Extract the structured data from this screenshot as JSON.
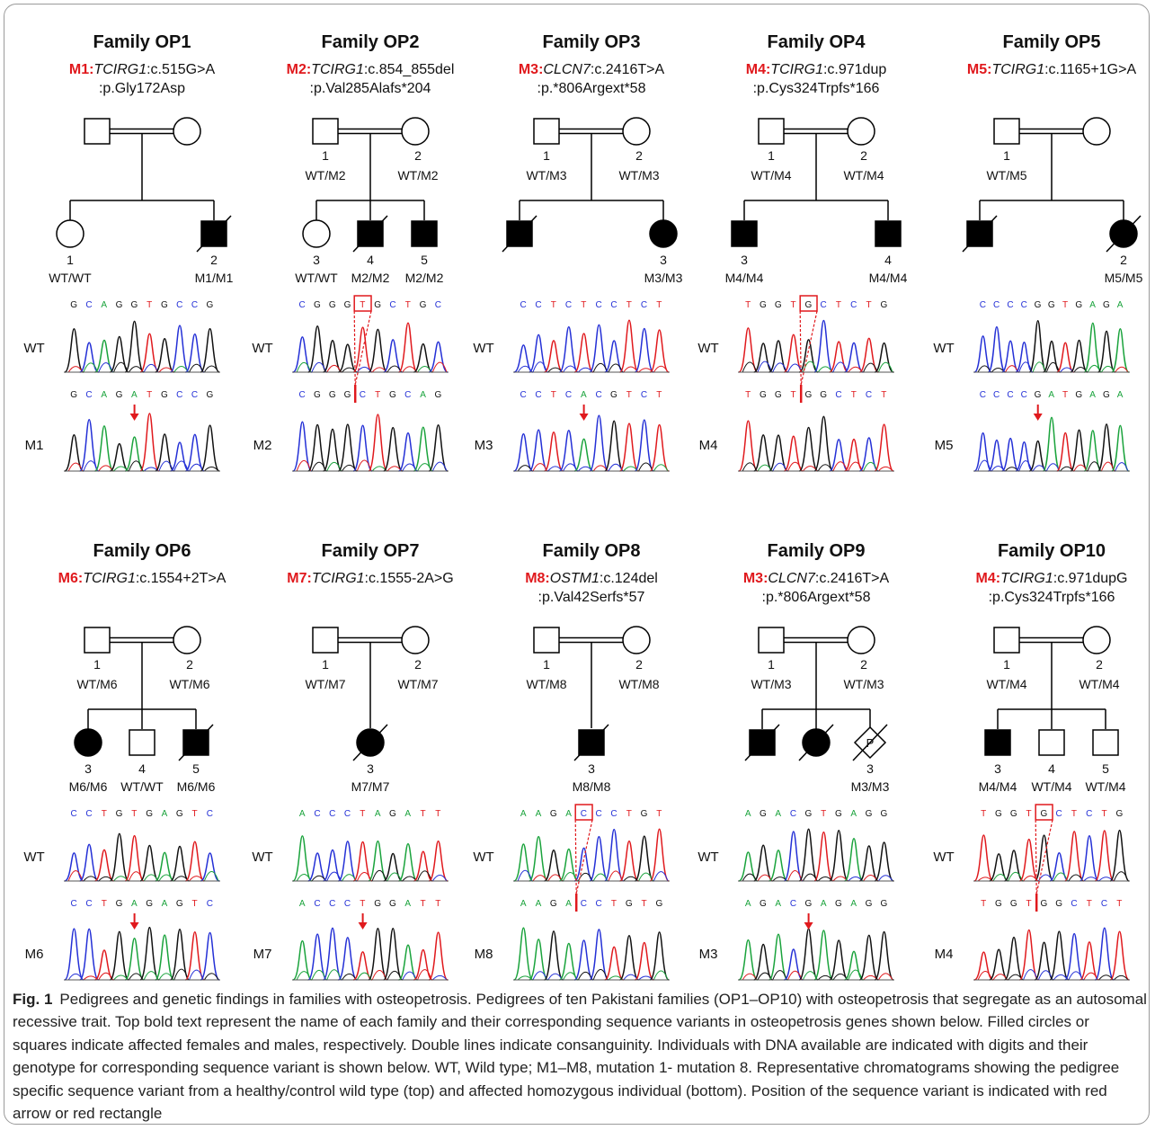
{
  "colors": {
    "mutation": "#e0191d",
    "A": "#1aa33c",
    "C": "#2430d6",
    "G": "#111111",
    "T": "#e0191d"
  },
  "families": [
    {
      "title": "Family OP1",
      "variant_lines": [
        {
          "tag": "M1:",
          "gene": "TCIRG1",
          "rest": ":c.515G>A"
        },
        {
          "tag": "",
          "gene": "",
          "rest": ":p.Gly172Asp"
        }
      ],
      "parent_labels": [
        {
          "num": "",
          "geno": ""
        },
        {
          "num": "",
          "geno": ""
        }
      ],
      "children": [
        {
          "sex": "F",
          "affected": false,
          "deceased": false,
          "num": "1",
          "geno": "WT/WT"
        },
        {
          "sex": "M",
          "affected": true,
          "deceased": true,
          "num": "2",
          "geno": "M1/M1"
        }
      ],
      "wt_seq": "GCAGGTGCCG",
      "mut_seq": "GCAGATGCCG",
      "wt_label": "WT",
      "mut_label": "M1",
      "marker": "arrow"
    },
    {
      "title": "Family OP2",
      "variant_lines": [
        {
          "tag": "M2:",
          "gene": "TCIRG1",
          "rest": ":c.854_855del"
        },
        {
          "tag": "",
          "gene": "",
          "rest": ":p.Val285Alafs*204"
        }
      ],
      "parent_labels": [
        {
          "num": "1",
          "geno": "WT/M2"
        },
        {
          "num": "2",
          "geno": "WT/M2"
        }
      ],
      "children": [
        {
          "sex": "F",
          "affected": false,
          "deceased": false,
          "num": "3",
          "geno": "WT/WT"
        },
        {
          "sex": "M",
          "affected": true,
          "deceased": true,
          "num": "4",
          "geno": "M2/M2"
        },
        {
          "sex": "M",
          "affected": true,
          "deceased": false,
          "num": "5",
          "geno": "M2/M2"
        }
      ],
      "wt_seq": "CGGGTGCTGC",
      "mut_seq": "CGGGCTGCAG",
      "wt_label": "WT",
      "mut_label": "M2",
      "marker": "box"
    },
    {
      "title": "Family OP3",
      "variant_lines": [
        {
          "tag": "M3:",
          "gene": "CLCN7",
          "rest": ":c.2416T>A"
        },
        {
          "tag": "",
          "gene": "",
          "rest": ":p.*806Argext*58"
        }
      ],
      "parent_labels": [
        {
          "num": "1",
          "geno": "WT/M3"
        },
        {
          "num": "2",
          "geno": "WT/M3"
        }
      ],
      "children": [
        {
          "sex": "M",
          "affected": true,
          "deceased": true,
          "num": "",
          "geno": ""
        },
        {
          "sex": "F",
          "affected": true,
          "deceased": false,
          "num": "3",
          "geno": "M3/M3"
        }
      ],
      "wt_seq": "CCTCTCCTCT",
      "mut_seq": "CCTCACGTCT",
      "wt_label": "WT",
      "mut_label": "M3",
      "marker": "arrow"
    },
    {
      "title": "Family OP4",
      "variant_lines": [
        {
          "tag": "M4:",
          "gene": "TCIRG1",
          "rest": ":c.971dup"
        },
        {
          "tag": "",
          "gene": "",
          "rest": ":p.Cys324Trpfs*166"
        }
      ],
      "parent_labels": [
        {
          "num": "1",
          "geno": "WT/M4"
        },
        {
          "num": "2",
          "geno": "WT/M4"
        }
      ],
      "children": [
        {
          "sex": "M",
          "affected": true,
          "deceased": false,
          "num": "3",
          "geno": "M4/M4"
        },
        {
          "sex": "M",
          "affected": true,
          "deceased": false,
          "num": "4",
          "geno": "M4/M4"
        }
      ],
      "wt_seq": "TGGTGCTCTG",
      "mut_seq": "TGGTGGCTCT",
      "wt_label": "WT",
      "mut_label": "M4",
      "marker": "box"
    },
    {
      "title": "Family OP5",
      "variant_lines": [
        {
          "tag": "M5:",
          "gene": "TCIRG1",
          "rest": ":c.1165+1G>A"
        }
      ],
      "parent_labels": [
        {
          "num": "1",
          "geno": "WT/M5"
        },
        {
          "num": "",
          "geno": ""
        }
      ],
      "children": [
        {
          "sex": "M",
          "affected": true,
          "deceased": true,
          "num": "",
          "geno": ""
        },
        {
          "sex": "F",
          "affected": true,
          "deceased": true,
          "num": "2",
          "geno": "M5/M5"
        }
      ],
      "wt_seq": "CCCCGGTGAGA",
      "mut_seq": "CCCCGATGAGA",
      "wt_label": "WT",
      "mut_label": "M5",
      "marker": "arrow"
    },
    {
      "title": "Family OP6",
      "variant_lines": [
        {
          "tag": "M6:",
          "gene": "TCIRG1",
          "rest": ":c.1554+2T>A"
        }
      ],
      "parent_labels": [
        {
          "num": "1",
          "geno": "WT/M6"
        },
        {
          "num": "2",
          "geno": "WT/M6"
        }
      ],
      "children": [
        {
          "sex": "F",
          "affected": true,
          "deceased": false,
          "num": "3",
          "geno": "M6/M6"
        },
        {
          "sex": "M",
          "affected": false,
          "deceased": false,
          "num": "4",
          "geno": "WT/WT"
        },
        {
          "sex": "M",
          "affected": true,
          "deceased": true,
          "num": "5",
          "geno": "M6/M6"
        }
      ],
      "wt_seq": "CCTGTGAGTC",
      "mut_seq": "CCTGAGAGTC",
      "wt_label": "WT",
      "mut_label": "M6",
      "marker": "arrow"
    },
    {
      "title": "Family OP7",
      "variant_lines": [
        {
          "tag": "M7:",
          "gene": "TCIRG1",
          "rest": ":c.1555-2A>G"
        }
      ],
      "parent_labels": [
        {
          "num": "1",
          "geno": "WT/M7"
        },
        {
          "num": "2",
          "geno": "WT/M7"
        }
      ],
      "children": [
        {
          "sex": "F",
          "affected": true,
          "deceased": true,
          "num": "3",
          "geno": "M7/M7"
        }
      ],
      "wt_seq": "ACCCTAGATT",
      "mut_seq": "ACCCTGGATT",
      "wt_label": "WT",
      "mut_label": "M7",
      "marker": "arrow"
    },
    {
      "title": "Family OP8",
      "variant_lines": [
        {
          "tag": "M8:",
          "gene": "OSTM1",
          "rest": ":c.124del"
        },
        {
          "tag": "",
          "gene": "",
          "rest": ":p.Val42Serfs*57"
        }
      ],
      "parent_labels": [
        {
          "num": "1",
          "geno": "WT/M8"
        },
        {
          "num": "2",
          "geno": "WT/M8"
        }
      ],
      "children": [
        {
          "sex": "M",
          "affected": true,
          "deceased": true,
          "num": "3",
          "geno": "M8/M8"
        }
      ],
      "wt_seq": "AAGACCCTGT",
      "mut_seq": "AAGACCTGTG",
      "wt_label": "WT",
      "mut_label": "M8",
      "marker": "box"
    },
    {
      "title": "Family OP9",
      "variant_lines": [
        {
          "tag": "M3:",
          "gene": "CLCN7",
          "rest": ":c.2416T>A"
        },
        {
          "tag": "",
          "gene": "",
          "rest": ":p.*806Argext*58"
        }
      ],
      "parent_labels": [
        {
          "num": "1",
          "geno": "WT/M3"
        },
        {
          "num": "2",
          "geno": "WT/M3"
        }
      ],
      "children": [
        {
          "sex": "M",
          "affected": true,
          "deceased": true,
          "num": "",
          "geno": ""
        },
        {
          "sex": "F",
          "affected": true,
          "deceased": true,
          "num": "",
          "geno": ""
        },
        {
          "sex": "P",
          "affected": false,
          "deceased": true,
          "num": "3",
          "geno": "M3/M3",
          "symbol_text": "P"
        }
      ],
      "wt_seq": "AGACGTGAGG",
      "mut_seq": "AGACGAGAGG",
      "wt_label": "WT",
      "mut_label": "M3",
      "marker": "arrow"
    },
    {
      "title": "Family OP10",
      "variant_lines": [
        {
          "tag": "M4:",
          "gene": "TCIRG1",
          "rest": ":c.971dupG"
        },
        {
          "tag": "",
          "gene": "",
          "rest": ":p.Cys324Trpfs*166"
        }
      ],
      "parent_labels": [
        {
          "num": "1",
          "geno": "WT/M4"
        },
        {
          "num": "2",
          "geno": "WT/M4"
        }
      ],
      "children": [
        {
          "sex": "M",
          "affected": true,
          "deceased": false,
          "num": "3",
          "geno": "M4/M4"
        },
        {
          "sex": "M",
          "affected": false,
          "deceased": false,
          "num": "4",
          "geno": "WT/M4"
        },
        {
          "sex": "M",
          "affected": false,
          "deceased": false,
          "num": "5",
          "geno": "WT/M4"
        }
      ],
      "wt_seq": "TGGTGCTCTG",
      "mut_seq": "TGGTGGCTCT",
      "wt_label": "WT",
      "mut_label": "M4",
      "marker": "box"
    }
  ],
  "caption": {
    "label": "Fig. 1",
    "text": "Pedigrees and genetic findings in families with osteopetrosis. Pedigrees of ten Pakistani families (OP1–OP10) with osteopetrosis that segregate as an autosomal recessive trait. Top bold text represent the name of each family and their corresponding sequence variants in osteopetrosis genes shown below. Filled circles or squares indicate affected females and males, respectively. Double lines indicate consanguinity. Individuals with DNA available are indicated with digits and their genotype for corresponding sequence variant is shown below. WT, Wild type; M1–M8, mutation 1- mutation 8. Representative chromatograms showing the pedigree specific sequence variant from a healthy/control wild type (top) and affected homozygous individual (bottom). Position of the sequence variant is indicated with red arrow or red rectangle"
  }
}
